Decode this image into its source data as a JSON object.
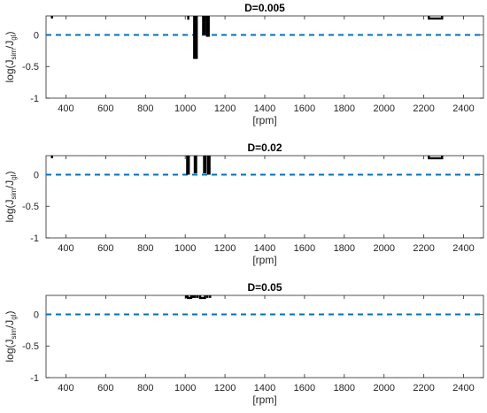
{
  "chart_data": [
    {
      "type": "line",
      "title": "D=0.005",
      "xlabel": "[rpm]",
      "ylabel": {
        "base": "log(J",
        "sub1": "sim",
        "mid": "/J",
        "sub2": "gl",
        "end": ")"
      },
      "xlim": [
        300,
        2500
      ],
      "ylim": [
        -1,
        0.3
      ],
      "xticks": [
        "400",
        "600",
        "800",
        "1000",
        "1200",
        "1400",
        "1600",
        "1800",
        "2000",
        "2200",
        "2400"
      ],
      "yticks": [
        "0",
        "-0.5",
        "-1"
      ],
      "reference_line": {
        "y": 0,
        "style": "dashed",
        "color": "#0072BD"
      },
      "series_color": "#000000",
      "segments": [
        [
          [
            330,
            0.3
          ],
          [
            330,
            0.26
          ]
        ],
        [
          [
            1015,
            0.3
          ],
          [
            1015,
            0.24
          ]
        ],
        [
          [
            1045,
            0.3
          ],
          [
            1045,
            -0.38
          ]
        ],
        [
          [
            1052,
            0.3
          ],
          [
            1052,
            -0.38
          ]
        ],
        [
          [
            1058,
            0.3
          ],
          [
            1058,
            -0.38
          ]
        ],
        [
          [
            1090,
            0.3
          ],
          [
            1090,
            0.0
          ]
        ],
        [
          [
            1100,
            0.3
          ],
          [
            1100,
            0.0
          ]
        ],
        [
          [
            1110,
            0.3
          ],
          [
            1110,
            -0.03
          ]
        ],
        [
          [
            1118,
            0.3
          ],
          [
            1118,
            -0.03
          ]
        ],
        [
          [
            2225,
            0.3
          ],
          [
            2225,
            0.26
          ],
          [
            2292,
            0.26
          ],
          [
            2292,
            0.3
          ]
        ]
      ]
    },
    {
      "type": "line",
      "title": "D=0.02",
      "xlabel": "[rpm]",
      "ylabel": {
        "base": "log(J",
        "sub1": "sim",
        "mid": "/J",
        "sub2": "gl",
        "end": ")"
      },
      "xlim": [
        300,
        2500
      ],
      "ylim": [
        -1,
        0.3
      ],
      "xticks": [
        "400",
        "600",
        "800",
        "1000",
        "1200",
        "1400",
        "1600",
        "1800",
        "2000",
        "2200",
        "2400"
      ],
      "yticks": [
        "0",
        "-0.5",
        "-1"
      ],
      "reference_line": {
        "y": 0,
        "style": "dashed",
        "color": "#0072BD"
      },
      "series_color": "#000000",
      "segments": [
        [
          [
            330,
            0.3
          ],
          [
            330,
            0.26
          ]
        ],
        [
          [
            1010,
            0.3
          ],
          [
            1010,
            0.0
          ]
        ],
        [
          [
            1018,
            0.3
          ],
          [
            1018,
            0.0
          ]
        ],
        [
          [
            1048,
            0.3
          ],
          [
            1048,
            0.02
          ]
        ],
        [
          [
            1055,
            0.3
          ],
          [
            1055,
            0.02
          ]
        ],
        [
          [
            1095,
            0.3
          ],
          [
            1095,
            0.02
          ]
        ],
        [
          [
            1102,
            0.3
          ],
          [
            1102,
            0.02
          ]
        ],
        [
          [
            1115,
            0.3
          ],
          [
            1115,
            0.0
          ]
        ],
        [
          [
            1122,
            0.3
          ],
          [
            1122,
            0.0
          ]
        ],
        [
          [
            2225,
            0.3
          ],
          [
            2225,
            0.26
          ],
          [
            2292,
            0.26
          ],
          [
            2292,
            0.3
          ]
        ]
      ]
    },
    {
      "type": "line",
      "title": "D=0.05",
      "xlabel": "[rpm]",
      "ylabel": {
        "base": "log(J",
        "sub1": "sim",
        "mid": "/J",
        "sub2": "gl",
        "end": ")"
      },
      "xlim": [
        300,
        2500
      ],
      "ylim": [
        -1,
        0.3
      ],
      "xticks": [
        "400",
        "600",
        "800",
        "1000",
        "1200",
        "1400",
        "1600",
        "1800",
        "2000",
        "2200",
        "2400"
      ],
      "yticks": [
        "0",
        "-0.5",
        "-1"
      ],
      "reference_line": {
        "y": 0,
        "style": "dashed",
        "color": "#0072BD"
      },
      "series_color": "#000000",
      "segments": [
        [
          [
            1005,
            0.3
          ],
          [
            1005,
            0.26
          ]
        ],
        [
          [
            1012,
            0.3
          ],
          [
            1012,
            0.26
          ],
          [
            1030,
            0.26
          ],
          [
            1030,
            0.3
          ]
        ],
        [
          [
            1040,
            0.3
          ],
          [
            1040,
            0.26
          ]
        ],
        [
          [
            1050,
            0.3
          ],
          [
            1050,
            0.26
          ]
        ],
        [
          [
            1062,
            0.3
          ],
          [
            1062,
            0.26
          ]
        ],
        [
          [
            1075,
            0.3
          ],
          [
            1075,
            0.26
          ],
          [
            1100,
            0.26
          ],
          [
            1100,
            0.3
          ]
        ],
        [
          [
            1112,
            0.3
          ],
          [
            1112,
            0.26
          ]
        ],
        [
          [
            1125,
            0.3
          ],
          [
            1125,
            0.26
          ]
        ]
      ]
    }
  ]
}
